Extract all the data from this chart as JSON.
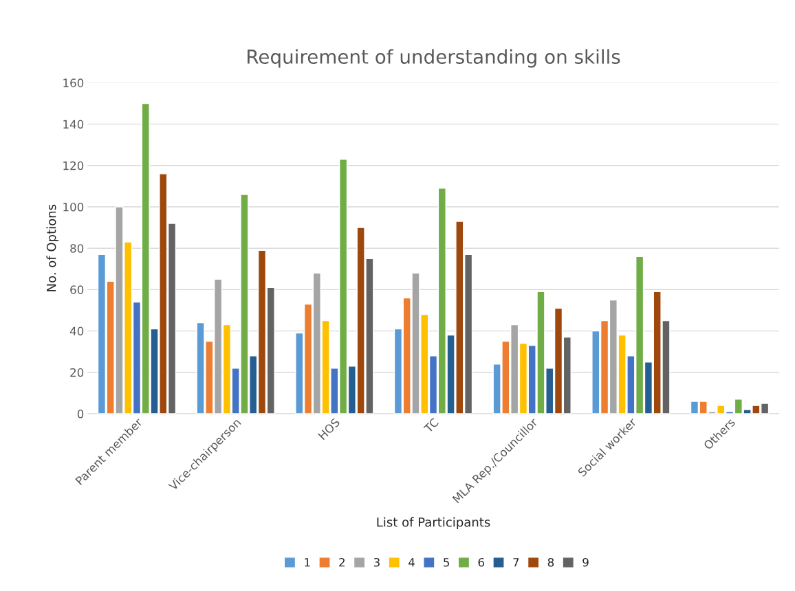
{
  "chart_data": {
    "type": "bar",
    "title": "Requirement of understanding on skills",
    "xlabel": "List of Participants",
    "ylabel": "No. of Options",
    "categories": [
      "Parent member",
      "Vice-chairperson",
      "HOS",
      "TC",
      "MLA Rep./Councillor",
      "Social worker",
      "Others"
    ],
    "series": [
      {
        "name": "1",
        "color": "#5b9bd5",
        "values": [
          77,
          44,
          39,
          41,
          24,
          40,
          6
        ]
      },
      {
        "name": "2",
        "color": "#ed7d31",
        "values": [
          64,
          35,
          53,
          56,
          35,
          45,
          6
        ]
      },
      {
        "name": "3",
        "color": "#a5a5a5",
        "values": [
          100,
          65,
          68,
          68,
          43,
          55,
          1
        ]
      },
      {
        "name": "4",
        "color": "#ffc000",
        "values": [
          83,
          43,
          45,
          48,
          34,
          38,
          4
        ]
      },
      {
        "name": "5",
        "color": "#4472c4",
        "values": [
          54,
          22,
          22,
          28,
          33,
          28,
          1
        ]
      },
      {
        "name": "6",
        "color": "#70ad47",
        "values": [
          150,
          106,
          123,
          109,
          59,
          76,
          7
        ]
      },
      {
        "name": "7",
        "color": "#255e91",
        "values": [
          41,
          28,
          23,
          38,
          22,
          25,
          2
        ]
      },
      {
        "name": "8",
        "color": "#9e480e",
        "values": [
          116,
          79,
          90,
          93,
          51,
          59,
          4
        ]
      },
      {
        "name": "9",
        "color": "#636363",
        "values": [
          92,
          61,
          75,
          77,
          37,
          45,
          5
        ]
      }
    ],
    "ylim": [
      0,
      160
    ],
    "yticks": [
      0,
      20,
      40,
      60,
      80,
      100,
      120,
      140,
      160
    ],
    "grid": "y",
    "legend": "bottom"
  }
}
